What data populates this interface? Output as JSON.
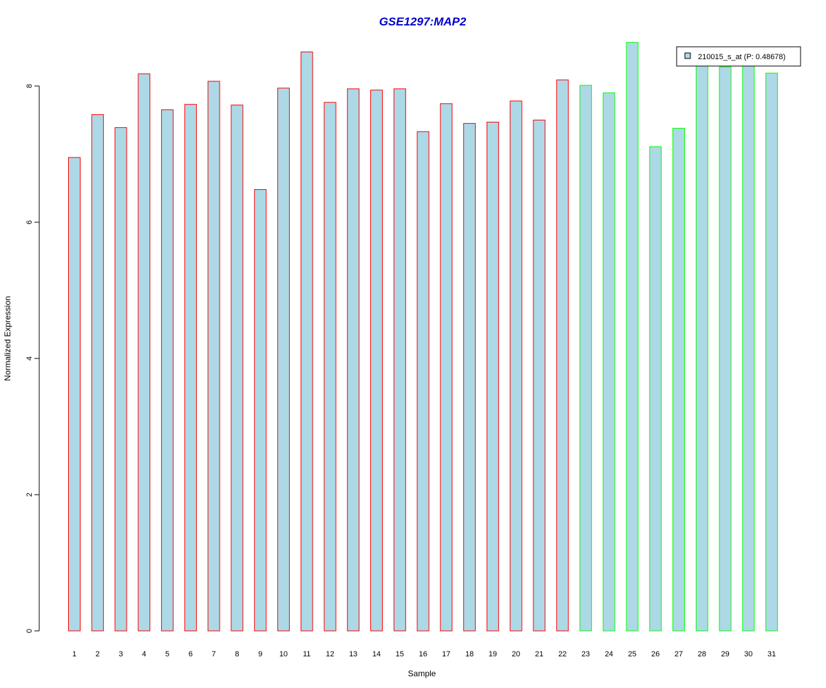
{
  "chart_data": {
    "type": "bar",
    "title": "GSE1297:MAP2",
    "xlabel": "Sample",
    "ylabel": "Normalized Expression",
    "ylim": [
      0,
      8.8
    ],
    "y_ticks": [
      0,
      2,
      4,
      6,
      8
    ],
    "categories": [
      "1",
      "2",
      "3",
      "4",
      "5",
      "6",
      "7",
      "8",
      "9",
      "10",
      "11",
      "12",
      "13",
      "14",
      "15",
      "16",
      "17",
      "18",
      "19",
      "20",
      "21",
      "22",
      "23",
      "24",
      "25",
      "26",
      "27",
      "28",
      "29",
      "30",
      "31"
    ],
    "series": [
      {
        "name": "210015_s_at (P: 0.48678)",
        "fill": "#add8e6",
        "values": [
          6.95,
          7.58,
          7.39,
          8.18,
          7.65,
          7.73,
          8.07,
          7.72,
          6.48,
          7.97,
          8.5,
          7.76,
          7.96,
          7.94,
          7.96,
          7.33,
          7.74,
          7.45,
          7.47,
          7.78,
          7.5,
          8.09,
          8.01,
          7.9,
          8.64,
          7.11,
          7.38,
          8.35,
          8.28,
          8.4,
          8.19
        ]
      }
    ],
    "groups": [
      {
        "from": 1,
        "to": 22,
        "border_color": "#ff0000"
      },
      {
        "from": 23,
        "to": 31,
        "border_color": "#00ff00"
      }
    ],
    "legend": {
      "label": "210015_s_at (P: 0.48678)",
      "position": "top-right"
    },
    "grid": false
  }
}
